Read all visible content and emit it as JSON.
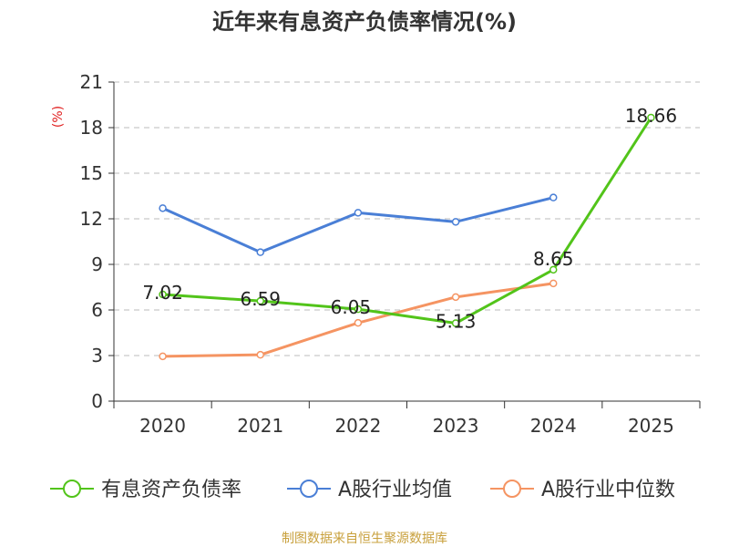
{
  "chart_data": {
    "type": "line",
    "title": "近年来有息资产负债率情况(%)",
    "ylabel": "(%)",
    "categories": [
      "2020",
      "2021",
      "2022",
      "2023",
      "2024",
      "2025"
    ],
    "ylim": [
      0,
      21
    ],
    "yticks": [
      0,
      3,
      6,
      9,
      12,
      15,
      18,
      21
    ],
    "grid": true,
    "legend_position": "bottom",
    "series": [
      {
        "name": "有息资产负债率",
        "color": "#52c41a",
        "values": [
          7.02,
          6.59,
          6.05,
          5.13,
          8.65,
          18.66
        ],
        "labels": [
          "7.02",
          "6.59",
          "6.05",
          "5.13",
          "8.65",
          "18.66"
        ]
      },
      {
        "name": "A股行业均值",
        "color": "#4a7fd6",
        "values": [
          12.7,
          9.8,
          12.4,
          11.8,
          13.4,
          null
        ]
      },
      {
        "name": "A股行业中位数",
        "color": "#f59462",
        "values": [
          2.95,
          3.05,
          5.15,
          6.85,
          7.75,
          null
        ]
      }
    ]
  },
  "source": "制图数据来自恒生聚源数据库"
}
